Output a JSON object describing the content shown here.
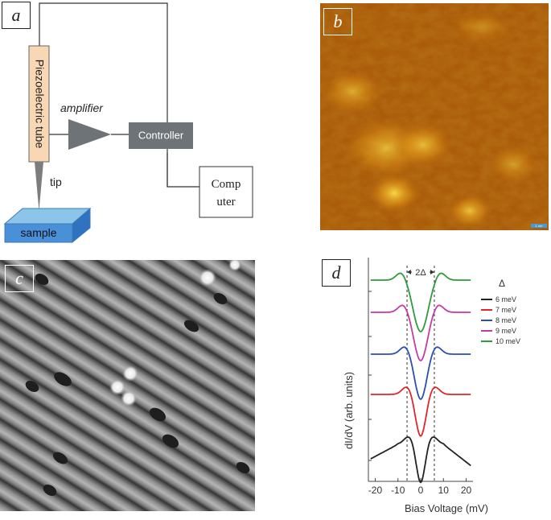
{
  "panel_a": {
    "label": "a",
    "piezo_text": "Piezoelectric tube",
    "amplifier_text": "amplifier",
    "controller_text": "Controller",
    "computer_line1": "Comp",
    "computer_line2": "uter",
    "tip_text": "tip",
    "sample_text": "sample"
  },
  "panel_b": {
    "label": "b",
    "scale_text": "1 nm"
  },
  "panel_c": {
    "label": "c"
  },
  "panel_d": {
    "label": "d",
    "colors": {
      "black": "#222222",
      "red": "#e0262a",
      "blue": "#2b4fb0",
      "magenta": "#c43aa6",
      "green": "#2e9b3c"
    },
    "chart_data": {
      "type": "line",
      "xlabel": "Bias Voltage (mV)",
      "ylabel": "dI/dV (arb. units)",
      "xlim": [
        -23,
        23
      ],
      "x_ticks": [
        "-20",
        "-10",
        "0",
        "10",
        "20"
      ],
      "gap_annotation": "2Δ",
      "legend_title": "Δ",
      "legend_position": "top-right",
      "dashed_lines_x": [
        -6,
        6
      ],
      "series": [
        {
          "name": "6 meV",
          "color": "#222222",
          "delta": 6,
          "offset": 0
        },
        {
          "name": "7 meV",
          "color": "#e0262a",
          "delta": 7,
          "offset": 1
        },
        {
          "name": "8 meV",
          "color": "#2b4fb0",
          "delta": 8,
          "offset": 2
        },
        {
          "name": "9 meV",
          "color": "#c43aa6",
          "delta": 9,
          "offset": 3
        },
        {
          "name": "10 meV",
          "color": "#2e9b3c",
          "delta": 10,
          "offset": 4
        }
      ]
    }
  }
}
